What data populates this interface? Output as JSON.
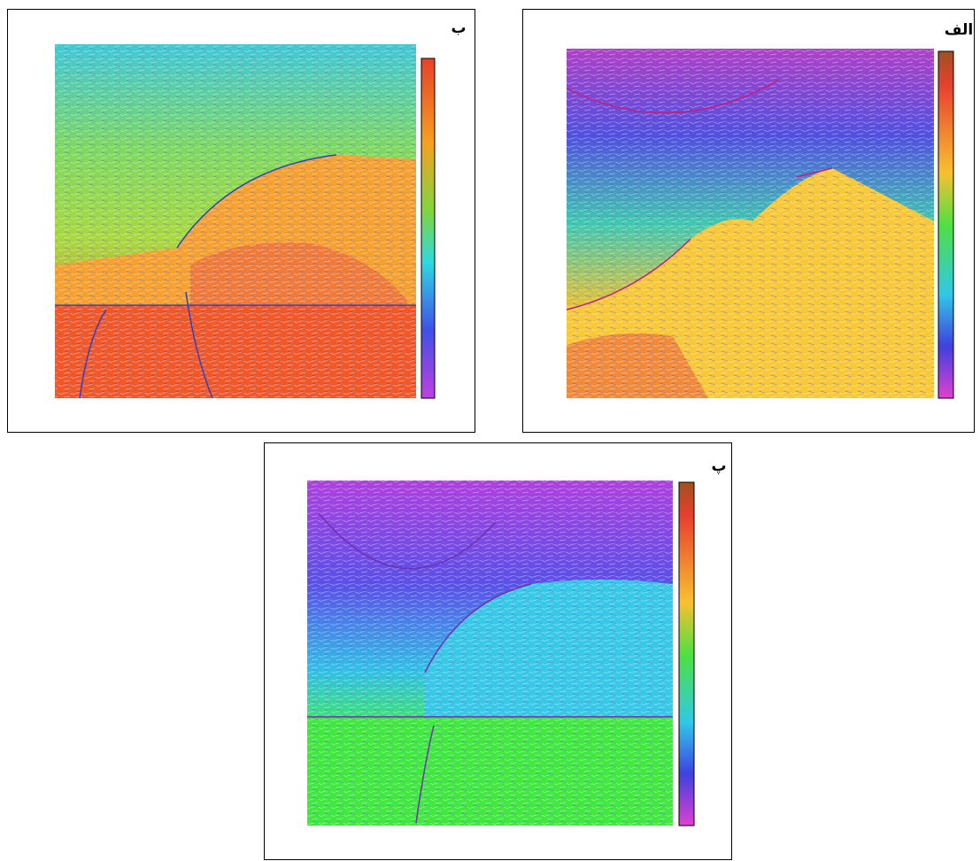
{
  "figure": {
    "panels": [
      {
        "label": "ب"
      },
      {
        "label": "الف"
      },
      {
        "label": "پ"
      }
    ]
  }
}
